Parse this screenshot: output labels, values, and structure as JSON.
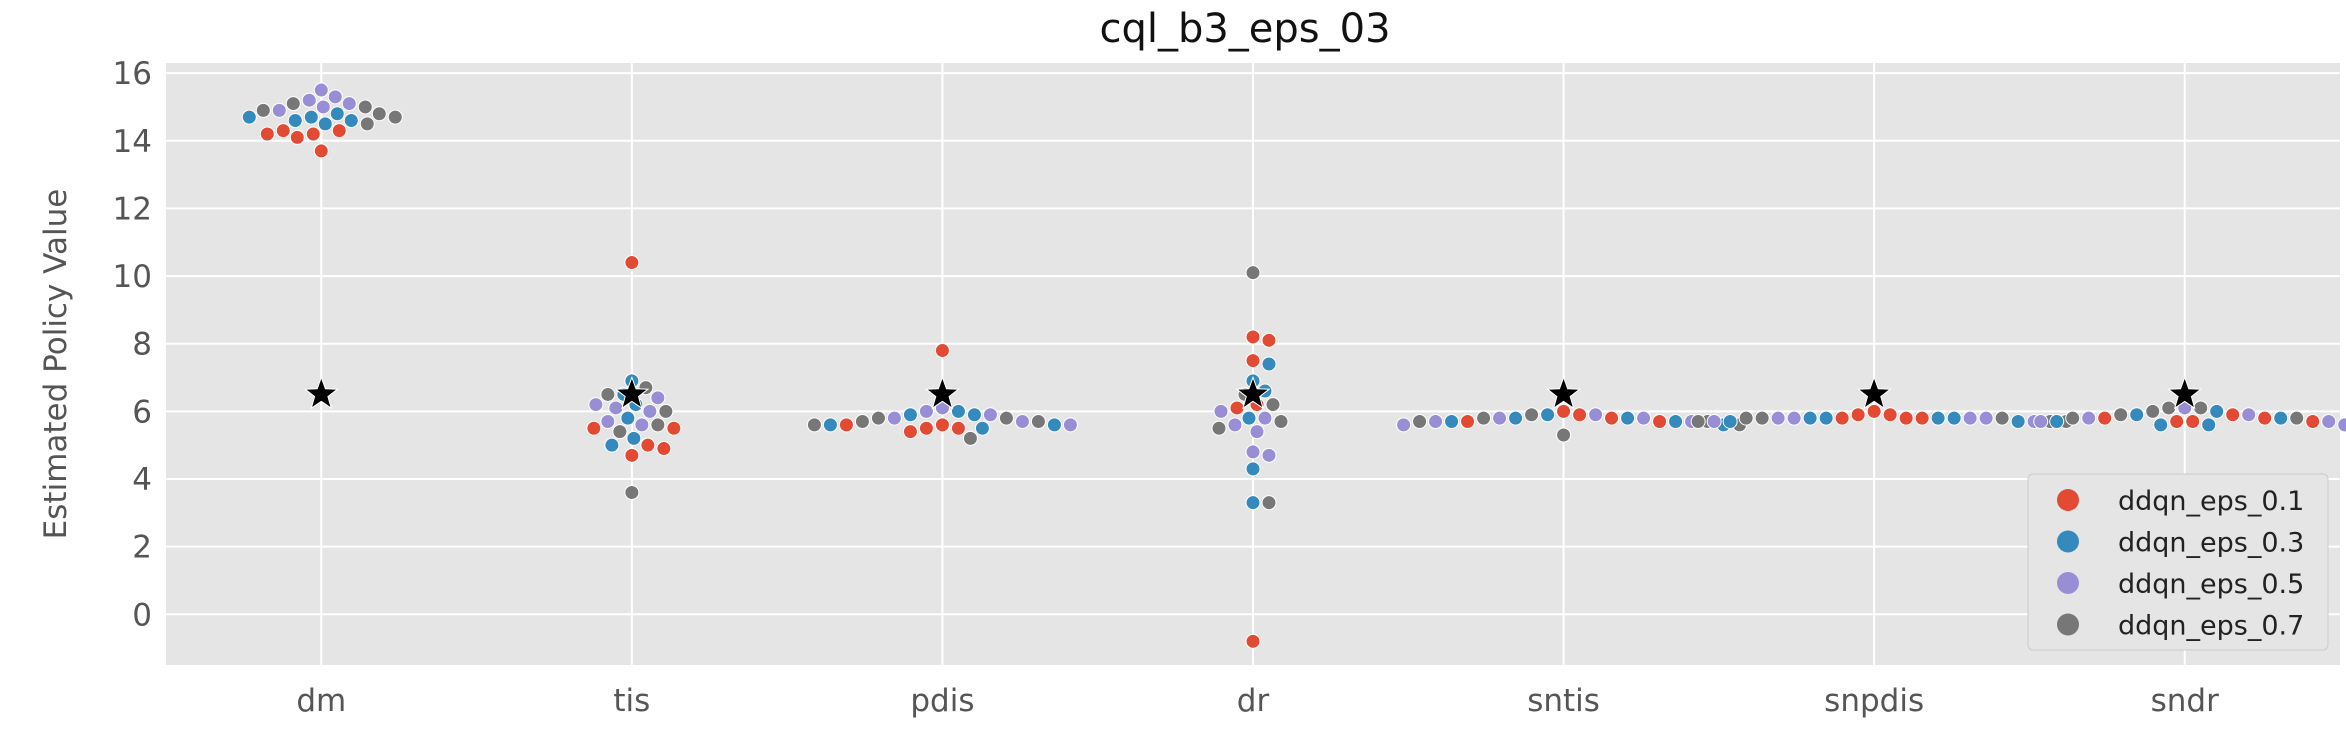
{
  "chart_data": {
    "type": "scatter",
    "subtype": "swarm",
    "title": "cql_b3_eps_03",
    "xlabel": "",
    "ylabel": "Estimated Policy Value",
    "ylim": [
      -1.5,
      16.3
    ],
    "yticks": [
      0,
      2,
      4,
      6,
      8,
      10,
      12,
      14,
      16
    ],
    "grid": true,
    "legend_position": "bottom-right",
    "categories": [
      "dm",
      "tis",
      "pdis",
      "dr",
      "sntis",
      "snpdis",
      "sndr"
    ],
    "reference": {
      "marker": "star",
      "color": "#000000",
      "values": [
        6.5,
        6.5,
        6.5,
        6.5,
        6.5,
        6.5,
        6.5
      ]
    },
    "series": [
      {
        "name": "ddqn_eps_0.1",
        "color": "#E24A33",
        "values": [
          [
            14.3,
            14.2,
            14.1,
            14.2,
            14.3,
            13.7
          ],
          [
            10.4,
            5.5,
            5.0,
            4.9,
            4.7,
            5.5
          ],
          [
            7.8,
            5.6,
            5.5,
            5.4,
            5.6,
            5.5
          ],
          [
            8.2,
            8.1,
            7.5,
            6.1,
            -0.8,
            6.2
          ],
          [
            6.0,
            6.5,
            5.7,
            5.7,
            5.8,
            5.9
          ],
          [
            6.0,
            5.9,
            5.8,
            5.8,
            5.9,
            5.8
          ],
          [
            5.9,
            5.7,
            5.7,
            5.8,
            5.8,
            5.7
          ]
        ]
      },
      {
        "name": "ddqn_eps_0.3",
        "color": "#348ABD",
        "values": [
          [
            14.6,
            14.5,
            14.8,
            14.7,
            14.7,
            14.6
          ],
          [
            6.9,
            6.5,
            5.8,
            5.2,
            5.0,
            6.2
          ],
          [
            6.0,
            5.9,
            5.5,
            5.6,
            5.9,
            5.6
          ],
          [
            6.9,
            7.4,
            5.8,
            4.3,
            3.3,
            6.6
          ],
          [
            5.8,
            5.7,
            5.6,
            5.9,
            5.8,
            5.7
          ],
          [
            5.8,
            5.8,
            5.7,
            5.8,
            5.8,
            5.7
          ],
          [
            6.0,
            5.9,
            5.6,
            5.7,
            5.8,
            5.6
          ]
        ]
      },
      {
        "name": "ddqn_eps_0.5",
        "color": "#988ED5",
        "values": [
          [
            15.5,
            15.0,
            15.2,
            15.1,
            15.3,
            14.9
          ],
          [
            6.2,
            6.0,
            5.7,
            5.6,
            6.1,
            6.4
          ],
          [
            5.9,
            5.8,
            6.1,
            5.7,
            5.6,
            6.0
          ],
          [
            5.8,
            5.4,
            4.7,
            4.8,
            5.6,
            6.0
          ],
          [
            5.9,
            5.8,
            5.7,
            5.6,
            5.7,
            5.8
          ],
          [
            5.8,
            5.8,
            5.7,
            5.8,
            5.7,
            5.8
          ],
          [
            6.1,
            5.8,
            5.7,
            5.6,
            5.9,
            5.7
          ]
        ]
      },
      {
        "name": "ddqn_eps_0.7",
        "color": "#777777",
        "values": [
          [
            14.9,
            15.1,
            14.8,
            14.5,
            14.7,
            15.0
          ],
          [
            6.7,
            6.0,
            5.4,
            3.6,
            6.5,
            5.6
          ],
          [
            5.8,
            5.8,
            5.7,
            5.2,
            5.7,
            5.6
          ],
          [
            10.1,
            6.5,
            5.7,
            3.3,
            5.5,
            6.2
          ],
          [
            5.7,
            5.3,
            5.7,
            5.8,
            5.9,
            5.6
          ],
          [
            5.8,
            5.7,
            5.7,
            5.8,
            5.8,
            5.7
          ],
          [
            5.8,
            6.1,
            6.0,
            5.8,
            5.9,
            6.1
          ]
        ]
      }
    ]
  }
}
